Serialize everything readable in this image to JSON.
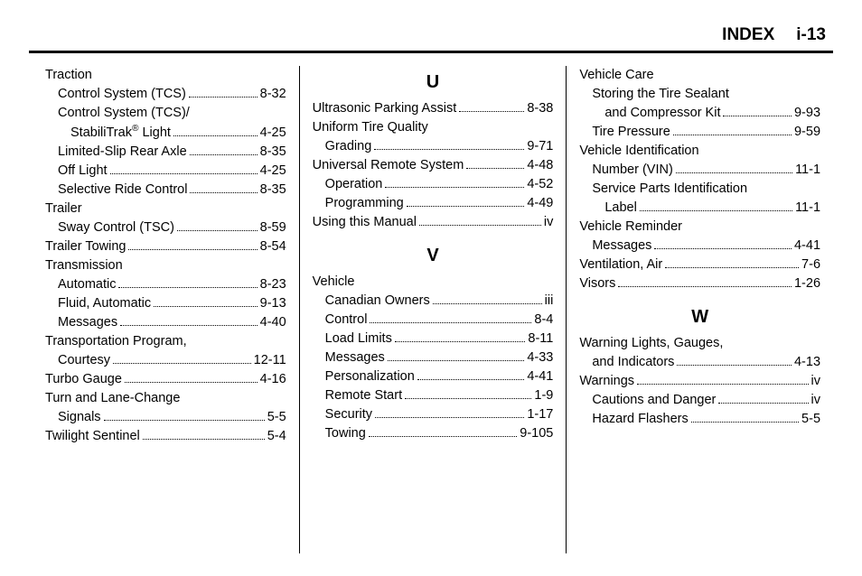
{
  "header": {
    "title": "INDEX",
    "pagenum": "i-13"
  },
  "columns": [
    {
      "items": [
        {
          "type": "entry",
          "indent": 0,
          "label": "Traction",
          "page": "",
          "noleader": true
        },
        {
          "type": "entry",
          "indent": 1,
          "label": "Control System (TCS)",
          "page": "8-32"
        },
        {
          "type": "entry",
          "indent": 1,
          "label": "Control System (TCS)/",
          "page": "",
          "noleader": true
        },
        {
          "type": "entry",
          "indent": 2,
          "label_html": "StabiliTrak<sup>®</sup> Light",
          "page": "4-25"
        },
        {
          "type": "entry",
          "indent": 1,
          "label": "Limited-Slip Rear Axle",
          "page": "8-35"
        },
        {
          "type": "entry",
          "indent": 1,
          "label": "Off Light",
          "page": "4-25"
        },
        {
          "type": "entry",
          "indent": 1,
          "label": "Selective Ride Control",
          "page": "8-35"
        },
        {
          "type": "entry",
          "indent": 0,
          "label": "Trailer",
          "page": "",
          "noleader": true
        },
        {
          "type": "entry",
          "indent": 1,
          "label": "Sway Control (TSC)",
          "page": "8-59"
        },
        {
          "type": "entry",
          "indent": 0,
          "label": "Trailer Towing",
          "page": "8-54"
        },
        {
          "type": "entry",
          "indent": 0,
          "label": "Transmission",
          "page": "",
          "noleader": true
        },
        {
          "type": "entry",
          "indent": 1,
          "label": "Automatic",
          "page": "8-23"
        },
        {
          "type": "entry",
          "indent": 1,
          "label": "Fluid, Automatic",
          "page": "9-13"
        },
        {
          "type": "entry",
          "indent": 1,
          "label": "Messages",
          "page": "4-40"
        },
        {
          "type": "entry",
          "indent": 0,
          "label": "Transportation Program,",
          "page": "",
          "noleader": true
        },
        {
          "type": "entry",
          "indent": 1,
          "label": "Courtesy",
          "page": "12-11"
        },
        {
          "type": "entry",
          "indent": 0,
          "label": "Turbo Gauge",
          "page": "4-16"
        },
        {
          "type": "entry",
          "indent": 0,
          "label": "Turn and Lane-Change",
          "page": "",
          "noleader": true
        },
        {
          "type": "entry",
          "indent": 1,
          "label": "Signals",
          "page": "5-5"
        },
        {
          "type": "entry",
          "indent": 0,
          "label": "Twilight Sentinel",
          "page": "5-4"
        }
      ]
    },
    {
      "items": [
        {
          "type": "letter",
          "text": "U"
        },
        {
          "type": "entry",
          "indent": 0,
          "label": "Ultrasonic Parking Assist",
          "page": "8-38"
        },
        {
          "type": "entry",
          "indent": 0,
          "label": "Uniform Tire Quality",
          "page": "",
          "noleader": true
        },
        {
          "type": "entry",
          "indent": 1,
          "label": "Grading",
          "page": "9-71"
        },
        {
          "type": "entry",
          "indent": 0,
          "label": "Universal Remote System",
          "page": "4-48"
        },
        {
          "type": "entry",
          "indent": 1,
          "label": "Operation",
          "page": "4-52"
        },
        {
          "type": "entry",
          "indent": 1,
          "label": "Programming",
          "page": "4-49"
        },
        {
          "type": "entry",
          "indent": 0,
          "label": "Using this Manual",
          "page": "iv"
        },
        {
          "type": "spacer"
        },
        {
          "type": "letter",
          "text": "V"
        },
        {
          "type": "entry",
          "indent": 0,
          "label": "Vehicle",
          "page": "",
          "noleader": true
        },
        {
          "type": "entry",
          "indent": 1,
          "label": "Canadian Owners",
          "page": "iii"
        },
        {
          "type": "entry",
          "indent": 1,
          "label": "Control",
          "page": "8-4"
        },
        {
          "type": "entry",
          "indent": 1,
          "label": "Load Limits",
          "page": "8-11"
        },
        {
          "type": "entry",
          "indent": 1,
          "label": "Messages",
          "page": "4-33"
        },
        {
          "type": "entry",
          "indent": 1,
          "label": "Personalization",
          "page": "4-41"
        },
        {
          "type": "entry",
          "indent": 1,
          "label": "Remote Start",
          "page": "1-9"
        },
        {
          "type": "entry",
          "indent": 1,
          "label": "Security",
          "page": "1-17"
        },
        {
          "type": "entry",
          "indent": 1,
          "label": "Towing",
          "page": "9-105"
        }
      ]
    },
    {
      "items": [
        {
          "type": "entry",
          "indent": 0,
          "label": "Vehicle Care",
          "page": "",
          "noleader": true
        },
        {
          "type": "entry",
          "indent": 1,
          "label": "Storing the Tire Sealant",
          "page": "",
          "noleader": true
        },
        {
          "type": "entry",
          "indent": 2,
          "label": "and Compressor Kit",
          "page": "9-93"
        },
        {
          "type": "entry",
          "indent": 1,
          "label": "Tire Pressure",
          "page": "9-59"
        },
        {
          "type": "entry",
          "indent": 0,
          "label": "Vehicle Identification",
          "page": "",
          "noleader": true
        },
        {
          "type": "entry",
          "indent": 1,
          "label": "Number (VIN)",
          "page": "11-1"
        },
        {
          "type": "entry",
          "indent": 1,
          "label": "Service Parts Identification",
          "page": "",
          "noleader": true
        },
        {
          "type": "entry",
          "indent": 2,
          "label": "Label",
          "page": "11-1"
        },
        {
          "type": "entry",
          "indent": 0,
          "label": "Vehicle Reminder",
          "page": "",
          "noleader": true
        },
        {
          "type": "entry",
          "indent": 1,
          "label": "Messages",
          "page": "4-41"
        },
        {
          "type": "entry",
          "indent": 0,
          "label": "Ventilation, Air",
          "page": "7-6"
        },
        {
          "type": "entry",
          "indent": 0,
          "label": "Visors",
          "page": "1-26"
        },
        {
          "type": "spacer"
        },
        {
          "type": "letter",
          "text": "W"
        },
        {
          "type": "entry",
          "indent": 0,
          "label": "Warning Lights, Gauges,",
          "page": "",
          "noleader": true
        },
        {
          "type": "entry",
          "indent": 1,
          "label": "and Indicators",
          "page": "4-13"
        },
        {
          "type": "entry",
          "indent": 0,
          "label": "Warnings",
          "page": "iv"
        },
        {
          "type": "entry",
          "indent": 1,
          "label": "Cautions and Danger",
          "page": "iv"
        },
        {
          "type": "entry",
          "indent": 1,
          "label": "Hazard Flashers",
          "page": "5-5"
        }
      ]
    }
  ]
}
